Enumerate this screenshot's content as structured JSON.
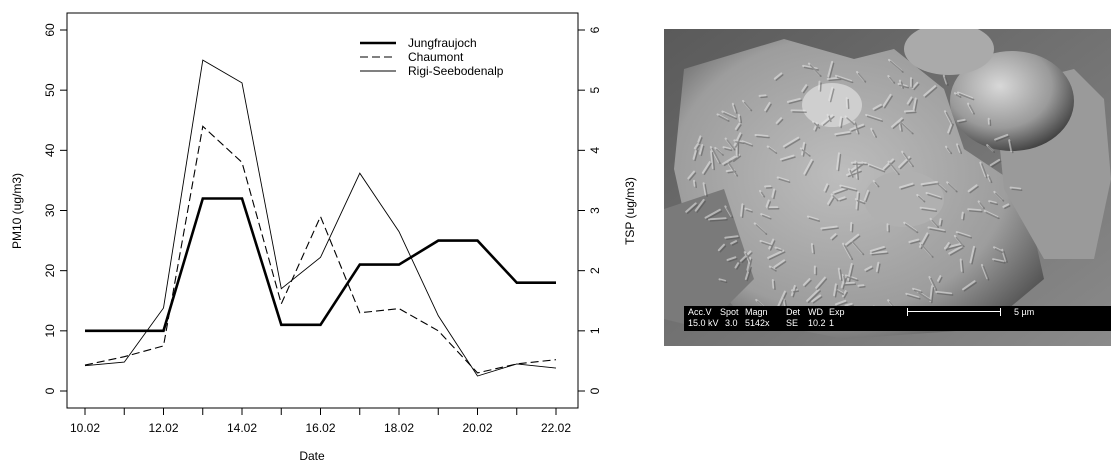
{
  "chart_data": {
    "type": "line",
    "xlabel": "Date",
    "ylabel_left": "PM10 (ug/m3)",
    "ylabel_right": "TSP (ug/m3)",
    "x_ticks": [
      "10.02",
      "12.02",
      "14.02",
      "16.02",
      "18.02",
      "20.02",
      "22.02"
    ],
    "x": [
      10,
      11,
      12,
      13,
      14,
      15,
      16,
      17,
      18,
      19,
      20,
      21,
      22
    ],
    "ylim_left": [
      0,
      60
    ],
    "yticks_left": [
      "0",
      "10",
      "20",
      "30",
      "40",
      "50",
      "60"
    ],
    "ylim_right": [
      0,
      6
    ],
    "yticks_right": [
      "0",
      "1",
      "2",
      "3",
      "4",
      "5",
      "6"
    ],
    "legend_position": "top-right",
    "series": [
      {
        "name": "Jungfraujoch",
        "axis": "left",
        "style": "thick-solid",
        "values": [
          10,
          10,
          10,
          32,
          32,
          11,
          11,
          21,
          21,
          25,
          25,
          18,
          18
        ]
      },
      {
        "name": "Chaumont",
        "axis": "right",
        "style": "dashed",
        "values": [
          0.43,
          0.57,
          0.75,
          4.4,
          3.8,
          1.45,
          2.9,
          1.3,
          1.37,
          1.0,
          0.3,
          0.45,
          0.52
        ]
      },
      {
        "name": "Rigi-Seebodenalp",
        "axis": "right",
        "style": "thin-solid",
        "values": [
          0.42,
          0.48,
          1.38,
          5.5,
          5.12,
          1.7,
          2.22,
          3.62,
          2.65,
          1.25,
          0.25,
          0.45,
          0.38
        ]
      }
    ]
  },
  "sem_image": {
    "headers": [
      "Acc.V",
      "Spot",
      "Magn",
      "Det",
      "WD",
      "Exp"
    ],
    "values": [
      "15.0 kV",
      "3.0",
      "5142x",
      "SE",
      "10.2",
      "1"
    ],
    "scale_label": "5 µm"
  }
}
